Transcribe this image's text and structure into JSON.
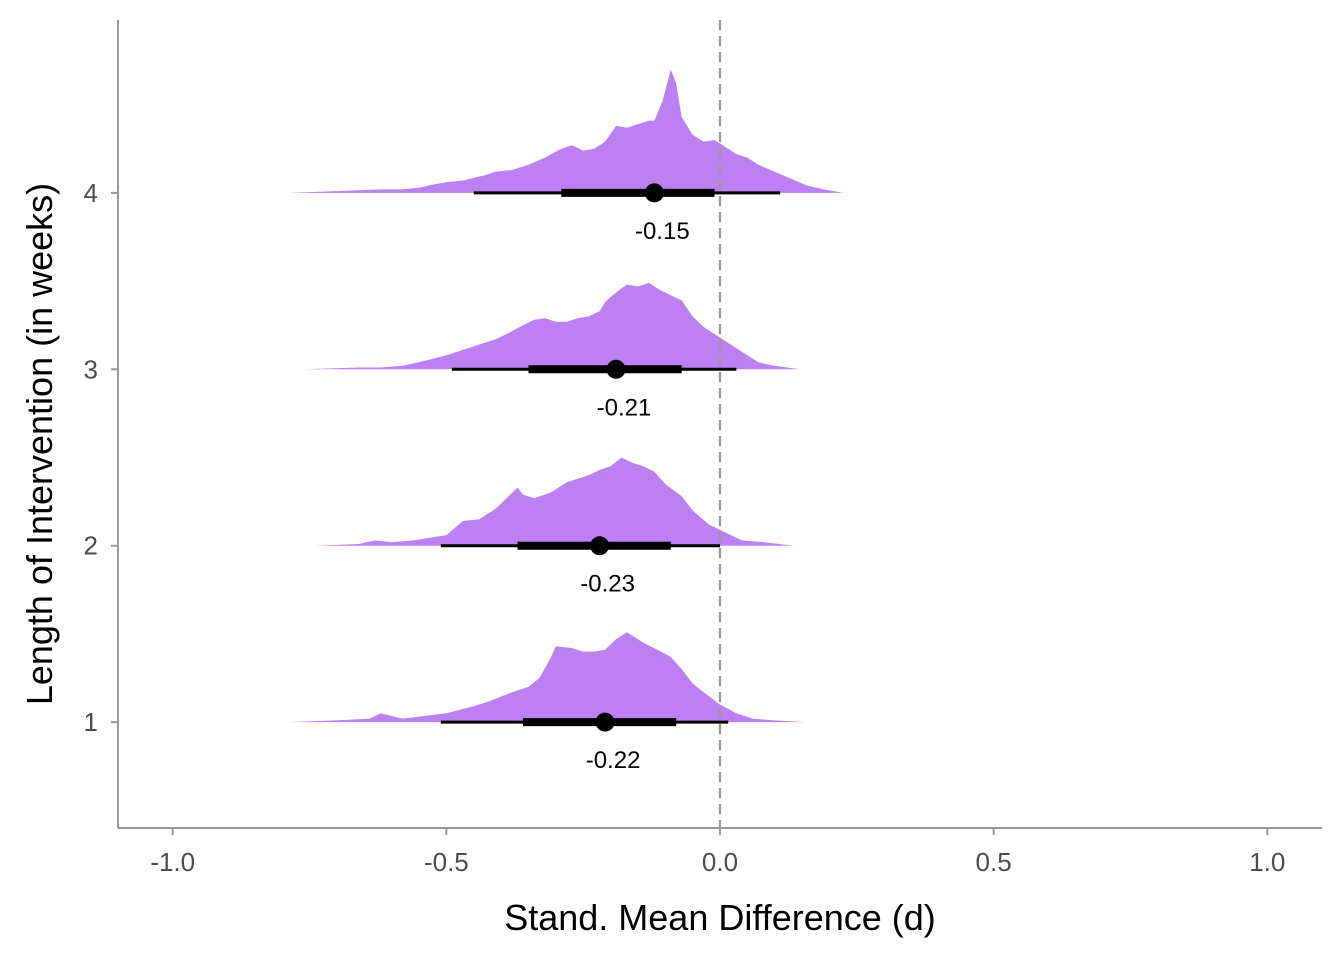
{
  "chart_data": {
    "type": "halfeye",
    "title": "",
    "xlabel": "Stand. Mean Difference (d)",
    "ylabel": "Length of Intervention (in weeks)",
    "xlim": [
      -1.1,
      1.1
    ],
    "ylim": [
      0.4,
      4.98
    ],
    "x_ticks": [
      -1.0,
      -0.5,
      0.0,
      0.5,
      1.0
    ],
    "x_tick_labels": [
      "-1.0",
      "-0.5",
      "0.0",
      "0.5",
      "1.0"
    ],
    "categories": [
      "1",
      "2",
      "3",
      "4"
    ],
    "reference_line_x": 0.0,
    "fill_color": "#bc80f2",
    "interval_color": "#000000",
    "groups": [
      {
        "category": "1",
        "median": -0.21,
        "label": "-0.22",
        "interval_66": [
          -0.36,
          -0.08
        ],
        "interval_95": [
          -0.51,
          0.015
        ],
        "density": [
          [
            -0.79,
            0.0
          ],
          [
            -0.7,
            0.01
          ],
          [
            -0.64,
            0.02
          ],
          [
            -0.62,
            0.05
          ],
          [
            -0.58,
            0.02
          ],
          [
            -0.5,
            0.05
          ],
          [
            -0.45,
            0.09
          ],
          [
            -0.42,
            0.12
          ],
          [
            -0.38,
            0.17
          ],
          [
            -0.35,
            0.2
          ],
          [
            -0.33,
            0.25
          ],
          [
            -0.31,
            0.36
          ],
          [
            -0.3,
            0.43
          ],
          [
            -0.27,
            0.42
          ],
          [
            -0.25,
            0.4
          ],
          [
            -0.23,
            0.4
          ],
          [
            -0.21,
            0.41
          ],
          [
            -0.19,
            0.47
          ],
          [
            -0.17,
            0.51
          ],
          [
            -0.16,
            0.49
          ],
          [
            -0.14,
            0.45
          ],
          [
            -0.12,
            0.42
          ],
          [
            -0.09,
            0.37
          ],
          [
            -0.07,
            0.3
          ],
          [
            -0.05,
            0.22
          ],
          [
            -0.03,
            0.17
          ],
          [
            0.0,
            0.1
          ],
          [
            0.03,
            0.05
          ],
          [
            0.06,
            0.02
          ],
          [
            0.1,
            0.01
          ],
          [
            0.155,
            0.0
          ]
        ]
      },
      {
        "category": "2",
        "median": -0.22,
        "label": "-0.23",
        "interval_66": [
          -0.37,
          -0.09
        ],
        "interval_95": [
          -0.51,
          0.0
        ],
        "density": [
          [
            -0.74,
            0.0
          ],
          [
            -0.66,
            0.01
          ],
          [
            -0.63,
            0.03
          ],
          [
            -0.6,
            0.02
          ],
          [
            -0.56,
            0.03
          ],
          [
            -0.5,
            0.06
          ],
          [
            -0.47,
            0.14
          ],
          [
            -0.44,
            0.15
          ],
          [
            -0.41,
            0.21
          ],
          [
            -0.39,
            0.27
          ],
          [
            -0.37,
            0.33
          ],
          [
            -0.36,
            0.29
          ],
          [
            -0.34,
            0.27
          ],
          [
            -0.31,
            0.3
          ],
          [
            -0.28,
            0.36
          ],
          [
            -0.26,
            0.38
          ],
          [
            -0.24,
            0.4
          ],
          [
            -0.22,
            0.43
          ],
          [
            -0.2,
            0.45
          ],
          [
            -0.18,
            0.5
          ],
          [
            -0.16,
            0.47
          ],
          [
            -0.14,
            0.45
          ],
          [
            -0.12,
            0.42
          ],
          [
            -0.1,
            0.35
          ],
          [
            -0.07,
            0.28
          ],
          [
            -0.05,
            0.2
          ],
          [
            -0.02,
            0.12
          ],
          [
            0.0,
            0.09
          ],
          [
            0.04,
            0.03
          ],
          [
            0.08,
            0.02
          ],
          [
            0.135,
            0.0
          ]
        ]
      },
      {
        "category": "3",
        "median": -0.19,
        "label": "-0.21",
        "interval_66": [
          -0.35,
          -0.07
        ],
        "interval_95": [
          -0.49,
          0.03
        ],
        "density": [
          [
            -0.76,
            0.0
          ],
          [
            -0.66,
            0.01
          ],
          [
            -0.62,
            0.01
          ],
          [
            -0.58,
            0.02
          ],
          [
            -0.55,
            0.04
          ],
          [
            -0.5,
            0.08
          ],
          [
            -0.46,
            0.12
          ],
          [
            -0.43,
            0.15
          ],
          [
            -0.41,
            0.17
          ],
          [
            -0.39,
            0.2
          ],
          [
            -0.36,
            0.25
          ],
          [
            -0.34,
            0.28
          ],
          [
            -0.32,
            0.29
          ],
          [
            -0.3,
            0.27
          ],
          [
            -0.28,
            0.27
          ],
          [
            -0.26,
            0.29
          ],
          [
            -0.24,
            0.3
          ],
          [
            -0.22,
            0.33
          ],
          [
            -0.21,
            0.38
          ],
          [
            -0.2,
            0.41
          ],
          [
            -0.18,
            0.46
          ],
          [
            -0.17,
            0.48
          ],
          [
            -0.15,
            0.47
          ],
          [
            -0.13,
            0.49
          ],
          [
            -0.11,
            0.45
          ],
          [
            -0.09,
            0.42
          ],
          [
            -0.07,
            0.39
          ],
          [
            -0.05,
            0.3
          ],
          [
            -0.03,
            0.24
          ],
          [
            0.0,
            0.18
          ],
          [
            0.02,
            0.14
          ],
          [
            0.04,
            0.1
          ],
          [
            0.07,
            0.04
          ],
          [
            0.1,
            0.02
          ],
          [
            0.145,
            0.0
          ]
        ]
      },
      {
        "category": "4",
        "median": -0.12,
        "label": "-0.15",
        "interval_66": [
          -0.29,
          -0.01
        ],
        "interval_95": [
          -0.45,
          0.11
        ],
        "density": [
          [
            -0.79,
            0.0
          ],
          [
            -0.7,
            0.01
          ],
          [
            -0.62,
            0.02
          ],
          [
            -0.58,
            0.02
          ],
          [
            -0.55,
            0.03
          ],
          [
            -0.52,
            0.05
          ],
          [
            -0.5,
            0.06
          ],
          [
            -0.47,
            0.07
          ],
          [
            -0.43,
            0.1
          ],
          [
            -0.41,
            0.12
          ],
          [
            -0.38,
            0.13
          ],
          [
            -0.35,
            0.16
          ],
          [
            -0.32,
            0.2
          ],
          [
            -0.29,
            0.25
          ],
          [
            -0.27,
            0.27
          ],
          [
            -0.25,
            0.24
          ],
          [
            -0.23,
            0.25
          ],
          [
            -0.21,
            0.29
          ],
          [
            -0.19,
            0.38
          ],
          [
            -0.17,
            0.37
          ],
          [
            -0.15,
            0.39
          ],
          [
            -0.13,
            0.41
          ],
          [
            -0.12,
            0.41
          ],
          [
            -0.105,
            0.52
          ],
          [
            -0.09,
            0.7
          ],
          [
            -0.08,
            0.62
          ],
          [
            -0.07,
            0.43
          ],
          [
            -0.05,
            0.33
          ],
          [
            -0.03,
            0.29
          ],
          [
            -0.01,
            0.3
          ],
          [
            0.01,
            0.26
          ],
          [
            0.03,
            0.22
          ],
          [
            0.05,
            0.2
          ],
          [
            0.07,
            0.16
          ],
          [
            0.1,
            0.12
          ],
          [
            0.13,
            0.08
          ],
          [
            0.16,
            0.04
          ],
          [
            0.19,
            0.02
          ],
          [
            0.225,
            0.0
          ]
        ]
      }
    ]
  }
}
